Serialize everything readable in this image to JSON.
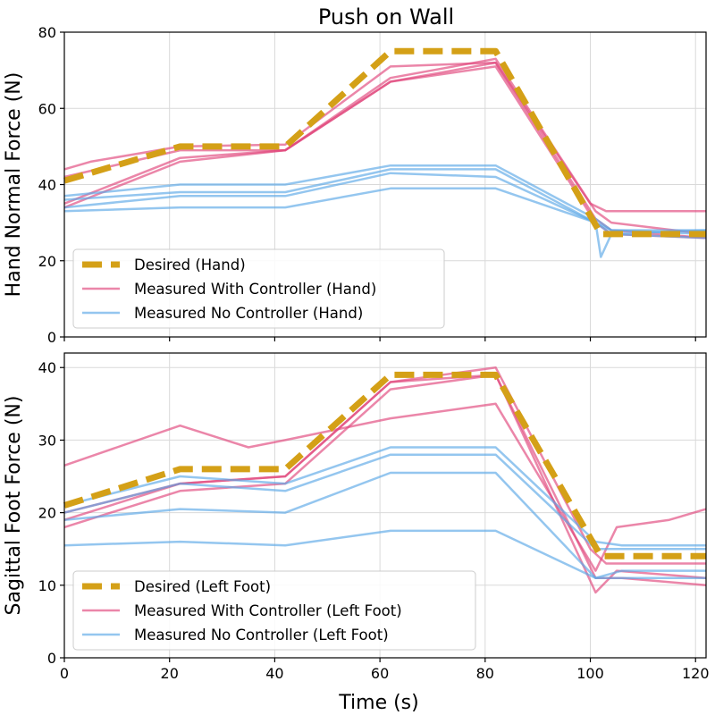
{
  "figure": {
    "title": "Push on Wall",
    "xlabel": "Time (s)"
  },
  "colors": {
    "desired": "#d4a017",
    "with_controller": "#e0457b",
    "no_controller": "#5aa7e6"
  },
  "chart_data": [
    {
      "type": "line",
      "ylabel": "Hand Normal Force (N)",
      "xlim": [
        0,
        122
      ],
      "ylim": [
        0,
        80
      ],
      "xticks": [
        0,
        20,
        40,
        60,
        80,
        100,
        120
      ],
      "yticks": [
        0,
        20,
        40,
        60,
        80
      ],
      "grid": true,
      "legend_position": "lower-left",
      "legend": [
        "Desired (Hand)",
        "Measured With Controller (Hand)",
        "Measured No Controller (Hand)"
      ],
      "series": [
        {
          "name": "Desired (Hand)",
          "style": "dashed",
          "color": "#d4a017",
          "points": [
            [
              0,
              41
            ],
            [
              22,
              50
            ],
            [
              42,
              50
            ],
            [
              62,
              75
            ],
            [
              82,
              75
            ],
            [
              102,
              27
            ],
            [
              122,
              27
            ]
          ]
        },
        {
          "name": "Measured With Controller (Hand)",
          "color": "#e0457b",
          "points": [
            [
              0,
              44
            ],
            [
              5,
              46
            ],
            [
              22,
              50
            ],
            [
              42,
              50.5
            ],
            [
              62,
              71
            ],
            [
              82,
              72
            ],
            [
              100,
              35
            ],
            [
              103,
              33
            ],
            [
              122,
              33
            ]
          ]
        },
        {
          "color": "#e0457b",
          "points": [
            [
              0,
              42
            ],
            [
              22,
              49
            ],
            [
              42,
              49
            ],
            [
              62,
              68
            ],
            [
              82,
              73
            ],
            [
              101,
              33
            ],
            [
              104,
              30
            ],
            [
              122,
              27
            ]
          ]
        },
        {
          "color": "#e0457b",
          "points": [
            [
              0,
              35
            ],
            [
              22,
              47
            ],
            [
              42,
              49
            ],
            [
              62,
              67
            ],
            [
              82,
              72
            ],
            [
              101,
              31
            ],
            [
              104,
              28
            ],
            [
              122,
              26
            ]
          ]
        },
        {
          "color": "#e0457b",
          "points": [
            [
              0,
              34
            ],
            [
              22,
              46
            ],
            [
              42,
              49
            ],
            [
              62,
              67
            ],
            [
              82,
              71
            ],
            [
              101,
              30
            ],
            [
              104,
              27
            ],
            [
              122,
              26
            ]
          ]
        },
        {
          "name": "Measured No Controller (Hand)",
          "color": "#5aa7e6",
          "points": [
            [
              0,
              37
            ],
            [
              22,
              40
            ],
            [
              42,
              40
            ],
            [
              62,
              45
            ],
            [
              82,
              45
            ],
            [
              101,
              31
            ],
            [
              104,
              28
            ],
            [
              122,
              27
            ]
          ]
        },
        {
          "color": "#5aa7e6",
          "points": [
            [
              0,
              36
            ],
            [
              22,
              38
            ],
            [
              42,
              38
            ],
            [
              62,
              44
            ],
            [
              82,
              44
            ],
            [
              101,
              30
            ],
            [
              104,
              27
            ],
            [
              122,
              26
            ]
          ]
        },
        {
          "color": "#5aa7e6",
          "points": [
            [
              0,
              34
            ],
            [
              22,
              37
            ],
            [
              42,
              37
            ],
            [
              62,
              43
            ],
            [
              82,
              42
            ],
            [
              101,
              30
            ],
            [
              104,
              28
            ],
            [
              122,
              28
            ]
          ]
        },
        {
          "color": "#5aa7e6",
          "points": [
            [
              0,
              33
            ],
            [
              22,
              34
            ],
            [
              42,
              34
            ],
            [
              62,
              39
            ],
            [
              82,
              39
            ],
            [
              101,
              30
            ],
            [
              102,
              21
            ],
            [
              104,
              27
            ],
            [
              122,
              28
            ]
          ]
        }
      ]
    },
    {
      "type": "line",
      "ylabel": "Sagittal Foot Force (N)",
      "xlim": [
        0,
        122
      ],
      "ylim": [
        0,
        42
      ],
      "xticks": [
        0,
        20,
        40,
        60,
        80,
        100,
        120
      ],
      "yticks": [
        0,
        10,
        20,
        30,
        40
      ],
      "grid": true,
      "legend_position": "lower-left",
      "legend": [
        "Desired (Left Foot)",
        "Measured With Controller (Left Foot)",
        "Measured No Controller (Left Foot)"
      ],
      "series": [
        {
          "name": "Desired (Left Foot)",
          "style": "dashed",
          "color": "#d4a017",
          "points": [
            [
              0,
              21
            ],
            [
              22,
              26
            ],
            [
              42,
              26
            ],
            [
              62,
              39
            ],
            [
              82,
              39
            ],
            [
              102,
              14
            ],
            [
              122,
              14
            ]
          ]
        },
        {
          "name": "Measured With Controller (Left Foot)",
          "color": "#e0457b",
          "points": [
            [
              0,
              26.5
            ],
            [
              10,
              29
            ],
            [
              22,
              32
            ],
            [
              35,
              29
            ],
            [
              42,
              30
            ],
            [
              62,
              33
            ],
            [
              82,
              35
            ],
            [
              101,
              12
            ],
            [
              105,
              18
            ],
            [
              115,
              19
            ],
            [
              122,
              20.5
            ]
          ]
        },
        {
          "color": "#e0457b",
          "points": [
            [
              0,
              19
            ],
            [
              22,
              24
            ],
            [
              42,
              25
            ],
            [
              62,
              38
            ],
            [
              82,
              40
            ],
            [
              100,
              15
            ],
            [
              103,
              13
            ],
            [
              122,
              13
            ]
          ]
        },
        {
          "color": "#e0457b",
          "points": [
            [
              0,
              18
            ],
            [
              22,
              23
            ],
            [
              42,
              24
            ],
            [
              62,
              37
            ],
            [
              82,
              39
            ],
            [
              101,
              9
            ],
            [
              105,
              12
            ],
            [
              122,
              11
            ]
          ]
        },
        {
          "color": "#e0457b",
          "points": [
            [
              0,
              20
            ],
            [
              22,
              24
            ],
            [
              42,
              25
            ],
            [
              62,
              38
            ],
            [
              82,
              39
            ],
            [
              101,
              11
            ],
            [
              106,
              11
            ],
            [
              122,
              10
            ]
          ]
        },
        {
          "name": "Measured No Controller (Left Foot)",
          "color": "#5aa7e6",
          "points": [
            [
              0,
              21
            ],
            [
              22,
              25
            ],
            [
              42,
              24
            ],
            [
              62,
              29
            ],
            [
              82,
              29
            ],
            [
              101,
              16
            ],
            [
              106,
              15.5
            ],
            [
              122,
              15.5
            ]
          ]
        },
        {
          "color": "#5aa7e6",
          "points": [
            [
              0,
              20
            ],
            [
              22,
              24
            ],
            [
              42,
              23
            ],
            [
              62,
              28
            ],
            [
              82,
              28
            ],
            [
              101,
              15
            ],
            [
              106,
              15
            ],
            [
              122,
              15
            ]
          ]
        },
        {
          "color": "#5aa7e6",
          "points": [
            [
              0,
              19
            ],
            [
              22,
              20.5
            ],
            [
              42,
              20
            ],
            [
              62,
              25.5
            ],
            [
              82,
              25.5
            ],
            [
              101,
              11
            ],
            [
              106,
              12
            ],
            [
              122,
              12
            ]
          ]
        },
        {
          "color": "#5aa7e6",
          "points": [
            [
              0,
              15.5
            ],
            [
              22,
              16
            ],
            [
              42,
              15.5
            ],
            [
              62,
              17.5
            ],
            [
              82,
              17.5
            ],
            [
              101,
              11
            ],
            [
              106,
              11
            ],
            [
              122,
              11
            ]
          ]
        }
      ]
    }
  ]
}
